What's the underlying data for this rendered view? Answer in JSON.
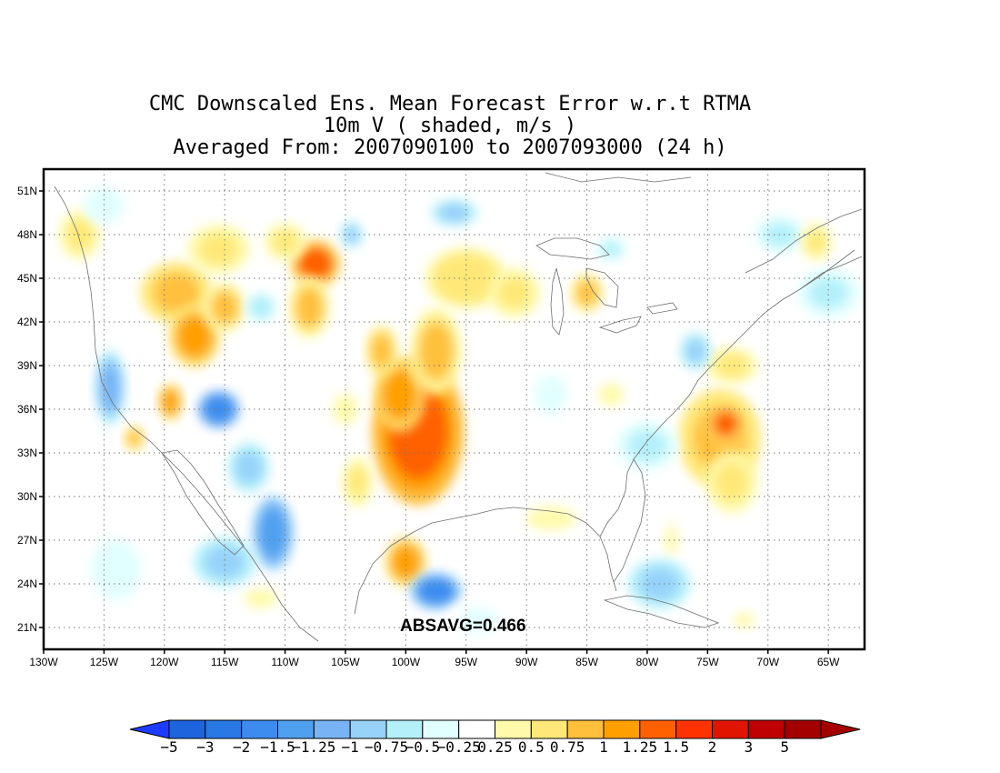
{
  "title": {
    "line1": "CMC Downscaled Ens. Mean Forecast Error w.r.t RTMA",
    "line2": "10m V ( shaded, m/s )",
    "line3": "Averaged From: 2007090100 to 2007093000 (24 h)"
  },
  "map": {
    "lon_range": [
      -130,
      -62
    ],
    "lat_range": [
      19.5,
      52.5
    ],
    "lon_ticks": [
      "130W",
      "125W",
      "120W",
      "115W",
      "110W",
      "105W",
      "100W",
      "95W",
      "90W",
      "85W",
      "80W",
      "75W",
      "70W",
      "65W"
    ],
    "lon_values": [
      -130,
      -125,
      -120,
      -115,
      -110,
      -105,
      -100,
      -95,
      -90,
      -85,
      -80,
      -75,
      -70,
      -65
    ],
    "lat_ticks": [
      "21N",
      "24N",
      "27N",
      "30N",
      "33N",
      "36N",
      "39N",
      "42N",
      "45N",
      "48N",
      "51N"
    ],
    "lat_values": [
      21,
      24,
      27,
      30,
      33,
      36,
      39,
      42,
      45,
      48,
      51
    ],
    "grid": true,
    "annotation": "ABSAVG=0.466"
  },
  "colorbar": {
    "labels": [
      "-5",
      "-3",
      "-2",
      "-1.5",
      "-1.25",
      "-1",
      "-0.75",
      "-0.5",
      "-0.25",
      "0.25",
      "0.5",
      "0.75",
      "1",
      "1.25",
      "1.5",
      "2",
      "3",
      "5"
    ],
    "colors": [
      "#1e64dc",
      "#2878e6",
      "#3c8cf0",
      "#50a0f0",
      "#78b4f5",
      "#96d2fa",
      "#b4f0fa",
      "#e1ffff",
      "#ffffff",
      "#fffaaa",
      "#ffe878",
      "#ffc03c",
      "#ffa000",
      "#ff6000",
      "#ff3200",
      "#e11400",
      "#c00000",
      "#a50000"
    ],
    "left_arrow_color": "#1e3cff",
    "right_arrow_color": "#a50000"
  },
  "field_blobs": [
    {
      "lon": -99,
      "lat": 34.5,
      "rx": 4.5,
      "ry": 6,
      "v": 1.4
    },
    {
      "lon": -100.5,
      "lat": 37,
      "rx": 2.5,
      "ry": 3,
      "v": 1.1
    },
    {
      "lon": -97.5,
      "lat": 40,
      "rx": 2.5,
      "ry": 3.5,
      "v": 0.8
    },
    {
      "lon": -102,
      "lat": 40,
      "rx": 1.5,
      "ry": 2,
      "v": 0.9
    },
    {
      "lon": -95,
      "lat": 45,
      "rx": 4,
      "ry": 2.5,
      "v": 0.7
    },
    {
      "lon": -91,
      "lat": 44,
      "rx": 2.5,
      "ry": 2,
      "v": 0.6
    },
    {
      "lon": -85,
      "lat": 44,
      "rx": 1.5,
      "ry": 1.5,
      "v": 0.9
    },
    {
      "lon": -107.5,
      "lat": 46,
      "rx": 2.5,
      "ry": 2,
      "v": 1.3
    },
    {
      "lon": -108,
      "lat": 43,
      "rx": 2,
      "ry": 2.5,
      "v": 0.8
    },
    {
      "lon": -119,
      "lat": 44,
      "rx": 3.5,
      "ry": 2.5,
      "v": 0.9
    },
    {
      "lon": -117.5,
      "lat": 41,
      "rx": 2.5,
      "ry": 2.5,
      "v": 1.2
    },
    {
      "lon": -115,
      "lat": 43,
      "rx": 2,
      "ry": 2,
      "v": 0.8
    },
    {
      "lon": -119.5,
      "lat": 36.5,
      "rx": 1.2,
      "ry": 1.5,
      "v": 1.1
    },
    {
      "lon": -122.5,
      "lat": 34,
      "rx": 1,
      "ry": 1,
      "v": 0.9
    },
    {
      "lon": -115.5,
      "lat": 47,
      "rx": 3,
      "ry": 2,
      "v": 0.6
    },
    {
      "lon": -127,
      "lat": 48,
      "rx": 2,
      "ry": 2,
      "v": 0.6
    },
    {
      "lon": -110,
      "lat": 47.5,
      "rx": 2,
      "ry": 1.5,
      "v": 0.5
    },
    {
      "lon": -74,
      "lat": 34,
      "rx": 4,
      "ry": 4,
      "v": 0.9
    },
    {
      "lon": -73.5,
      "lat": 35,
      "rx": 1.8,
      "ry": 1.5,
      "v": 1.3
    },
    {
      "lon": -73,
      "lat": 31,
      "rx": 2.5,
      "ry": 2.5,
      "v": 0.6
    },
    {
      "lon": -73,
      "lat": 39,
      "rx": 2.5,
      "ry": 1.5,
      "v": 0.6
    },
    {
      "lon": -100,
      "lat": 25.5,
      "rx": 2,
      "ry": 2,
      "v": 1.0
    },
    {
      "lon": -104,
      "lat": 31,
      "rx": 1.5,
      "ry": 2,
      "v": 0.6
    },
    {
      "lon": -88,
      "lat": 28.5,
      "rx": 3,
      "ry": 1.2,
      "v": 0.4
    },
    {
      "lon": -83,
      "lat": 37,
      "rx": 2,
      "ry": 1.5,
      "v": 0.3
    },
    {
      "lon": -78,
      "lat": 27,
      "rx": 1,
      "ry": 2,
      "v": 0.3
    },
    {
      "lon": -105,
      "lat": 36,
      "rx": 2,
      "ry": 2,
      "v": 0.3
    },
    {
      "lon": -112,
      "lat": 23,
      "rx": 2,
      "ry": 1,
      "v": 0.4
    },
    {
      "lon": -72,
      "lat": 21.5,
      "rx": 1.2,
      "ry": 0.8,
      "v": 0.4
    },
    {
      "lon": -115.5,
      "lat": 36,
      "rx": 2,
      "ry": 1.5,
      "v": -1.8
    },
    {
      "lon": -124.5,
      "lat": 37.5,
      "rx": 1.5,
      "ry": 3,
      "v": -1.1
    },
    {
      "lon": -113,
      "lat": 32,
      "rx": 2,
      "ry": 2,
      "v": -0.9
    },
    {
      "lon": -111,
      "lat": 27.5,
      "rx": 2,
      "ry": 3,
      "v": -1.5
    },
    {
      "lon": -115,
      "lat": 25.5,
      "rx": 3,
      "ry": 2,
      "v": -0.9
    },
    {
      "lon": -97.5,
      "lat": 23.5,
      "rx": 2.5,
      "ry": 1.5,
      "v": -1.6
    },
    {
      "lon": -79,
      "lat": 24,
      "rx": 3,
      "ry": 2,
      "v": -0.9
    },
    {
      "lon": -80,
      "lat": 33.5,
      "rx": 3,
      "ry": 2,
      "v": -0.6
    },
    {
      "lon": -76,
      "lat": 40,
      "rx": 1.5,
      "ry": 1.5,
      "v": -0.9
    },
    {
      "lon": -96,
      "lat": 49.5,
      "rx": 2.5,
      "ry": 1.2,
      "v": -0.8
    },
    {
      "lon": -112,
      "lat": 43,
      "rx": 1.5,
      "ry": 1.2,
      "v": -0.7
    },
    {
      "lon": -104.5,
      "lat": 48,
      "rx": 1.2,
      "ry": 1.2,
      "v": -0.8
    },
    {
      "lon": -69,
      "lat": 48,
      "rx": 2.5,
      "ry": 1.5,
      "v": -0.6
    },
    {
      "lon": -65,
      "lat": 44,
      "rx": 3,
      "ry": 2,
      "v": -0.6
    },
    {
      "lon": -125,
      "lat": 50,
      "rx": 2,
      "ry": 1.5,
      "v": -0.5
    },
    {
      "lon": -83,
      "lat": 47,
      "rx": 1.5,
      "ry": 1,
      "v": -0.6
    },
    {
      "lon": -124,
      "lat": 25,
      "rx": 3,
      "ry": 3,
      "v": -0.4
    },
    {
      "lon": -94,
      "lat": 21.5,
      "rx": 3,
      "ry": 1.5,
      "v": -0.3
    },
    {
      "lon": -88,
      "lat": 37,
      "rx": 2,
      "ry": 2,
      "v": -0.35
    },
    {
      "lon": -66,
      "lat": 47.5,
      "rx": 1.5,
      "ry": 1.5,
      "v": 0.5
    }
  ]
}
